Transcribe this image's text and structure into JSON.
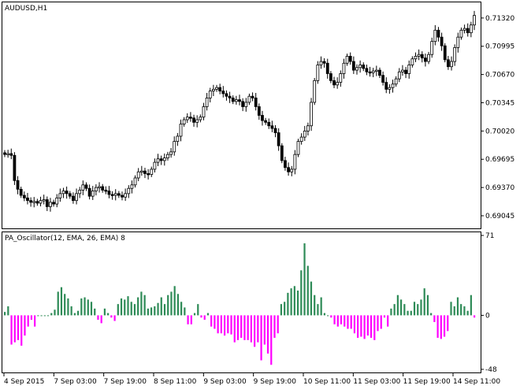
{
  "price_panel": {
    "title": "AUDUSD,H1",
    "price_ticks": [
      "0.71320",
      "0.70995",
      "0.70670",
      "0.70345",
      "0.70020",
      "0.69695",
      "0.69370",
      "0.69045"
    ],
    "candle_bull_color": "#ffffff",
    "candle_bear_color": "#000000",
    "last_price_marker": "#000000"
  },
  "indicator_panel": {
    "title": "PA_Oscillator(12, EMA, 26, EMA) 8",
    "value_ticks": [
      "71",
      "0",
      "-48"
    ],
    "positive_color": "#2e8b57",
    "negative_color": "#ff00ff"
  },
  "time_axis": {
    "labels": [
      "4 Sep 2015",
      "7 Sep 03:00",
      "7 Sep 19:00",
      "8 Sep 11:00",
      "9 Sep 03:00",
      "9 Sep 19:00",
      "10 Sep 11:00",
      "11 Sep 03:00",
      "11 Sep 19:00",
      "14 Sep 11:00"
    ]
  },
  "chart_data": [
    {
      "type": "candlestick",
      "title": "AUDUSD,H1",
      "ylim": [
        0.689,
        0.715
      ],
      "closes": [
        0.6975,
        0.6976,
        0.6974,
        0.6945,
        0.6935,
        0.6928,
        0.6925,
        0.6922,
        0.692,
        0.6921,
        0.6919,
        0.6922,
        0.6923,
        0.6915,
        0.692,
        0.6918,
        0.6925,
        0.693,
        0.6933,
        0.693,
        0.6927,
        0.6922,
        0.693,
        0.6934,
        0.694,
        0.6936,
        0.6927,
        0.6933,
        0.6937,
        0.6938,
        0.6934,
        0.6933,
        0.6929,
        0.6928,
        0.693,
        0.6928,
        0.6926,
        0.693,
        0.6936,
        0.694,
        0.6948,
        0.6955,
        0.6956,
        0.6953,
        0.6952,
        0.6958,
        0.6966,
        0.697,
        0.6968,
        0.6971,
        0.6975,
        0.6978,
        0.699,
        0.6996,
        0.701,
        0.7015,
        0.7018,
        0.7017,
        0.7012,
        0.7015,
        0.7018,
        0.703,
        0.704,
        0.7048,
        0.705,
        0.7052,
        0.7048,
        0.7045,
        0.7042,
        0.704,
        0.7036,
        0.7038,
        0.7036,
        0.703,
        0.7035,
        0.7042,
        0.704,
        0.703,
        0.702,
        0.7014,
        0.7012,
        0.7008,
        0.7005,
        0.7,
        0.6985,
        0.6968,
        0.696,
        0.6955,
        0.6958,
        0.6975,
        0.699,
        0.6995,
        0.7002,
        0.7008,
        0.7035,
        0.706,
        0.7078,
        0.7082,
        0.708,
        0.7068,
        0.706,
        0.7055,
        0.7058,
        0.7068,
        0.708,
        0.7088,
        0.7082,
        0.7072,
        0.7075,
        0.7078,
        0.7074,
        0.707,
        0.7069,
        0.7071,
        0.7072,
        0.7066,
        0.7058,
        0.705,
        0.7052,
        0.7056,
        0.7062,
        0.707,
        0.7072,
        0.7068,
        0.7078,
        0.7085,
        0.7088,
        0.709,
        0.7086,
        0.7082,
        0.709,
        0.7105,
        0.7118,
        0.711,
        0.71,
        0.7084,
        0.7076,
        0.7082,
        0.7098,
        0.711,
        0.7118,
        0.712,
        0.7115,
        0.7124,
        0.7135
      ]
    },
    {
      "type": "bar",
      "title": "PA_Oscillator(12, EMA, 26, EMA) 8",
      "ylim": [
        -48,
        71
      ],
      "values": [
        3,
        8,
        -26,
        -24,
        -22,
        -27,
        -18,
        -10,
        -4,
        -10,
        0,
        0,
        0,
        0,
        2,
        5,
        21,
        25,
        19,
        15,
        8,
        2,
        4,
        15,
        16,
        14,
        12,
        6,
        -4,
        -7,
        6,
        2,
        -2,
        -5,
        10,
        15,
        14,
        17,
        12,
        10,
        16,
        21,
        18,
        6,
        7,
        8,
        11,
        16,
        10,
        18,
        21,
        26,
        19,
        12,
        7,
        -8,
        -8,
        2,
        10,
        -2,
        -4,
        2,
        -10,
        -12,
        -16,
        -16,
        -18,
        -16,
        -17,
        -24,
        -22,
        -20,
        -22,
        -22,
        -24,
        -28,
        -24,
        -40,
        -26,
        -34,
        -44,
        -20,
        -16,
        10,
        12,
        20,
        24,
        26,
        22,
        40,
        64,
        44,
        30,
        18,
        10,
        16,
        2,
        0,
        -2,
        -8,
        -10,
        -8,
        -10,
        -12,
        -12,
        -16,
        -20,
        -19,
        -21,
        -18,
        -20,
        -22,
        -14,
        -12,
        -2,
        -10,
        6,
        10,
        18,
        14,
        10,
        4,
        4,
        12,
        10,
        14,
        24,
        18,
        2,
        -6,
        -20,
        -21,
        -19,
        -14,
        12,
        8,
        16,
        10,
        8,
        4,
        18,
        -2
      ]
    }
  ]
}
